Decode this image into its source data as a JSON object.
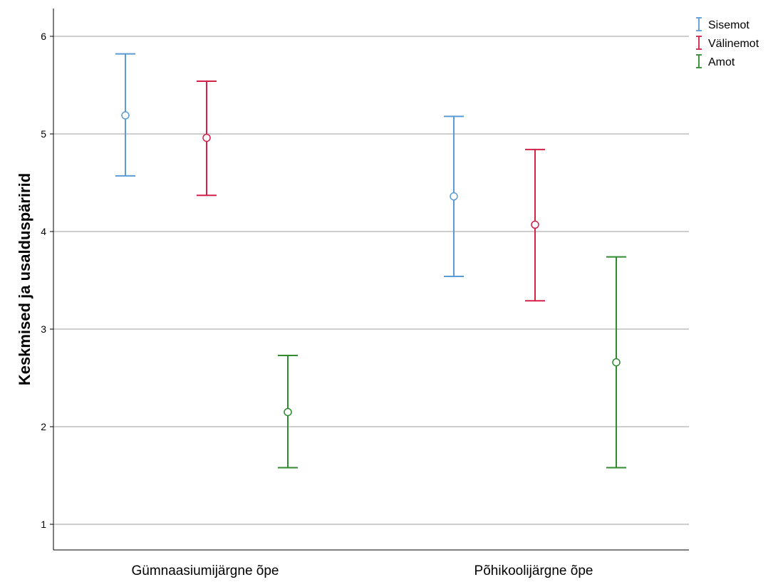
{
  "chart_data": {
    "type": "errorbar",
    "ylabel": "Keskmised ja usalduspäririd",
    "xlabel": "",
    "ylim": [
      0.75,
      6.28
    ],
    "yticks": [
      1,
      2,
      3,
      4,
      5,
      6
    ],
    "grid": true,
    "legend_position": "top-right",
    "categories": [
      "Gümnaasiumijärgne õpe",
      "Põhikoolijärgne õpe"
    ],
    "series": [
      {
        "name": "Sisemot",
        "color": "#5b9bd5",
        "means": [
          5.19,
          4.36
        ],
        "lower": [
          4.57,
          3.54
        ],
        "upper": [
          5.82,
          5.18
        ]
      },
      {
        "name": "Välinemot",
        "color": "#d62048",
        "means": [
          4.96,
          4.07
        ],
        "lower": [
          4.37,
          3.29
        ],
        "upper": [
          5.54,
          4.84
        ]
      },
      {
        "name": "Amot",
        "color": "#2e8b2e",
        "means": [
          2.15,
          2.66
        ],
        "lower": [
          1.58,
          1.58
        ],
        "upper": [
          2.73,
          3.74
        ]
      }
    ]
  }
}
